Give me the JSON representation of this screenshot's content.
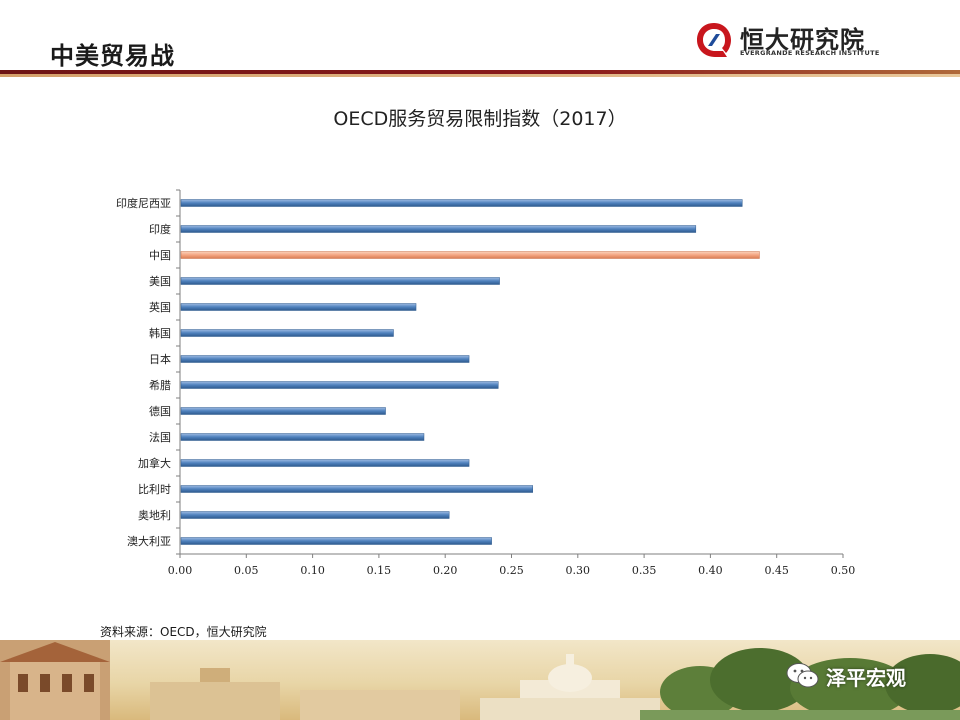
{
  "slide": {
    "title": "中美贸易战",
    "source_note": "资料来源：OECD，恒大研究院"
  },
  "logo": {
    "name_cn": "恒大研究院",
    "name_en": "EVERGRANDE RESEARCH INSTITUTE",
    "icon": "evergrande-logo-icon"
  },
  "watermark": {
    "icon": "wechat-icon",
    "text": "泽平宏观"
  },
  "colors": {
    "bar_default": "#4f81bd",
    "bar_highlight": "#f4a582",
    "header_dark": "#8b1a1a",
    "header_light": "#d4a06a"
  },
  "chart_data": {
    "type": "bar",
    "orientation": "horizontal",
    "title": "OECD服务贸易限制指数（2017）",
    "categories": [
      "印度尼西亚",
      "印度",
      "中国",
      "美国",
      "英国",
      "韩国",
      "日本",
      "希腊",
      "德国",
      "法国",
      "加拿大",
      "比利时",
      "奥地利",
      "澳大利亚"
    ],
    "values": [
      0.424,
      0.389,
      0.437,
      0.241,
      0.178,
      0.161,
      0.218,
      0.24,
      0.155,
      0.184,
      0.218,
      0.266,
      0.203,
      0.235
    ],
    "highlight": "中国",
    "xlim": [
      0,
      0.5
    ],
    "xticks": [
      "0.00",
      "0.05",
      "0.10",
      "0.15",
      "0.20",
      "0.25",
      "0.30",
      "0.35",
      "0.40",
      "0.45",
      "0.50"
    ],
    "xlabel": "",
    "ylabel": "",
    "grid": false,
    "legend": "none"
  }
}
